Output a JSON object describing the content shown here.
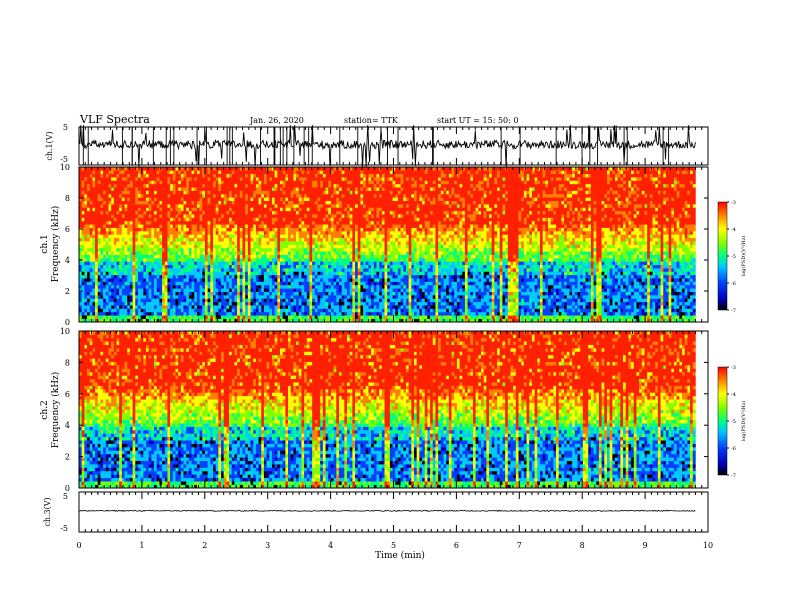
{
  "header": {
    "title": "VLF Spectra",
    "date": "Jan. 26, 2020",
    "station": "station= TTK",
    "start_time": "start UT = 15: 50: 0"
  },
  "chart_data": [
    {
      "type": "line",
      "name": "ch1-waveform",
      "ylabel": "ch.1(V)",
      "ylim": [
        -5,
        5
      ],
      "yticks": [
        "5",
        "-5"
      ],
      "baseline": 0.4,
      "noise": "spiky"
    },
    {
      "type": "heatmap",
      "name": "ch1-spectrogram",
      "ylabel": "ch.1\nFrequency (kHz)",
      "ylim": [
        0,
        10
      ],
      "yticks": [
        "0",
        "2",
        "4",
        "6",
        "8",
        "10"
      ],
      "colorbar": {
        "label": "log(PSD)(V²/Hz)",
        "range": [
          -7,
          -3
        ],
        "ticks": [
          "-3",
          "-4",
          "-5",
          "-6",
          "-7"
        ]
      }
    },
    {
      "type": "heatmap",
      "name": "ch2-spectrogram",
      "ylabel": "ch.2\nFrequency (kHz)",
      "ylim": [
        0,
        10
      ],
      "yticks": [
        "0",
        "2",
        "4",
        "6",
        "8",
        "10"
      ],
      "colorbar": {
        "label": "log(PSD)(V²/Hz)",
        "range": [
          -7,
          -3
        ],
        "ticks": [
          "-3",
          "-4",
          "-5",
          "-6",
          "-7"
        ]
      }
    },
    {
      "type": "line",
      "name": "ch3-waveform",
      "ylabel": "ch.3(V)",
      "ylim": [
        -5,
        5
      ],
      "yticks": [
        "5",
        "-5"
      ],
      "baseline": 0.3,
      "noise": "flat"
    }
  ],
  "xaxis": {
    "label": "Time (min)",
    "range": [
      0,
      10
    ],
    "data_end": 9.8,
    "ticks": [
      "0",
      "1",
      "2",
      "3",
      "4",
      "5",
      "6",
      "7",
      "8",
      "9",
      "10"
    ]
  },
  "colors": {
    "colormap": [
      "#000000",
      "#0000b4",
      "#0040ff",
      "#00c8ff",
      "#00ff80",
      "#80ff00",
      "#ffff00",
      "#ff8000",
      "#ff2000"
    ],
    "axis": "#000000"
  }
}
